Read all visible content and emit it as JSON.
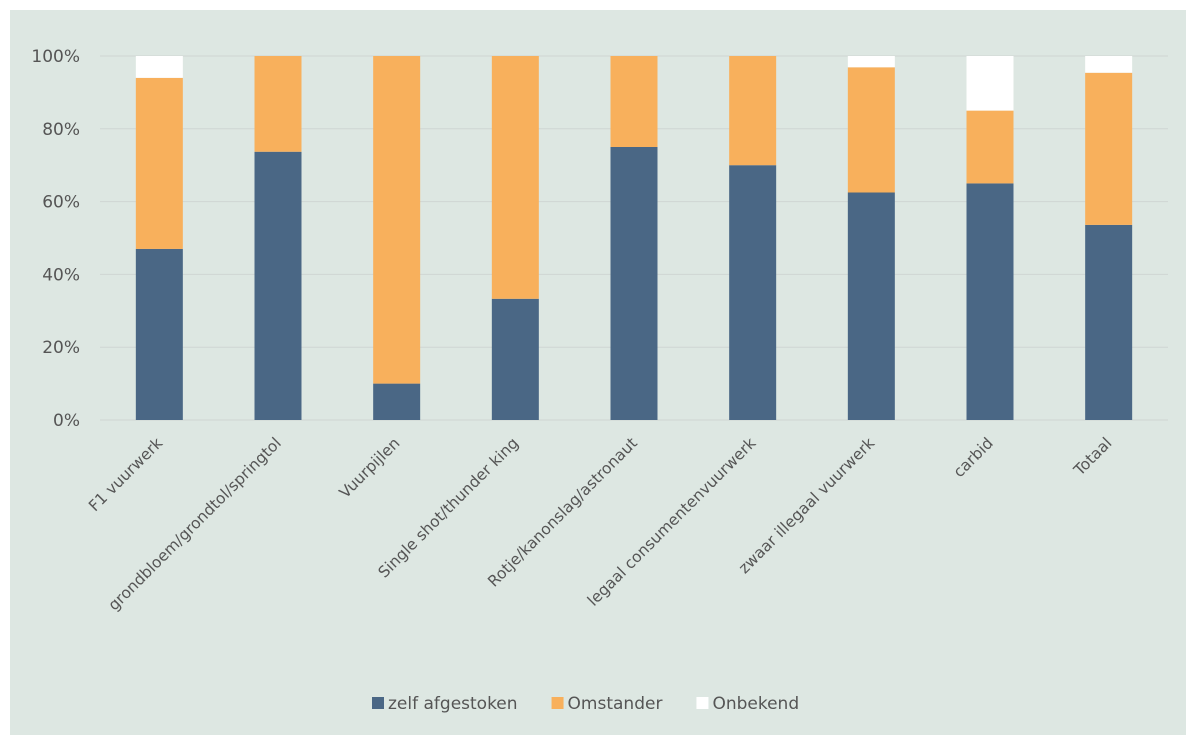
{
  "chart_data": {
    "type": "bar",
    "stacked": true,
    "categories": [
      "F1 vuurwerk",
      "grondbloem/grondtol/springtol",
      "Vuurpijlen",
      "Single shot/thunder king",
      "Rotje/kanonslag/astronaut",
      "legaal consumentenvuurwerk",
      "zwaar illegaal vuurwerk",
      "carbid",
      "Totaal"
    ],
    "series": [
      {
        "name": "zelf afgestoken",
        "color": "#4a6785",
        "values": [
          47,
          73.7,
          10,
          33.3,
          75,
          70,
          62.5,
          65,
          53.6
        ]
      },
      {
        "name": "Omstander",
        "color": "#f8b05c",
        "values": [
          47,
          26.3,
          90,
          66.7,
          25,
          30,
          34.4,
          20,
          41.8
        ]
      },
      {
        "name": "Onbekend",
        "color": "#ffffff",
        "values": [
          6,
          0,
          0,
          0,
          0,
          0,
          3.1,
          15,
          4.6
        ]
      }
    ],
    "y_ticks": [
      "0%",
      "20%",
      "40%",
      "60%",
      "80%",
      "100%"
    ],
    "ylim": [
      0,
      100
    ],
    "grid": true,
    "legend_position": "bottom"
  }
}
